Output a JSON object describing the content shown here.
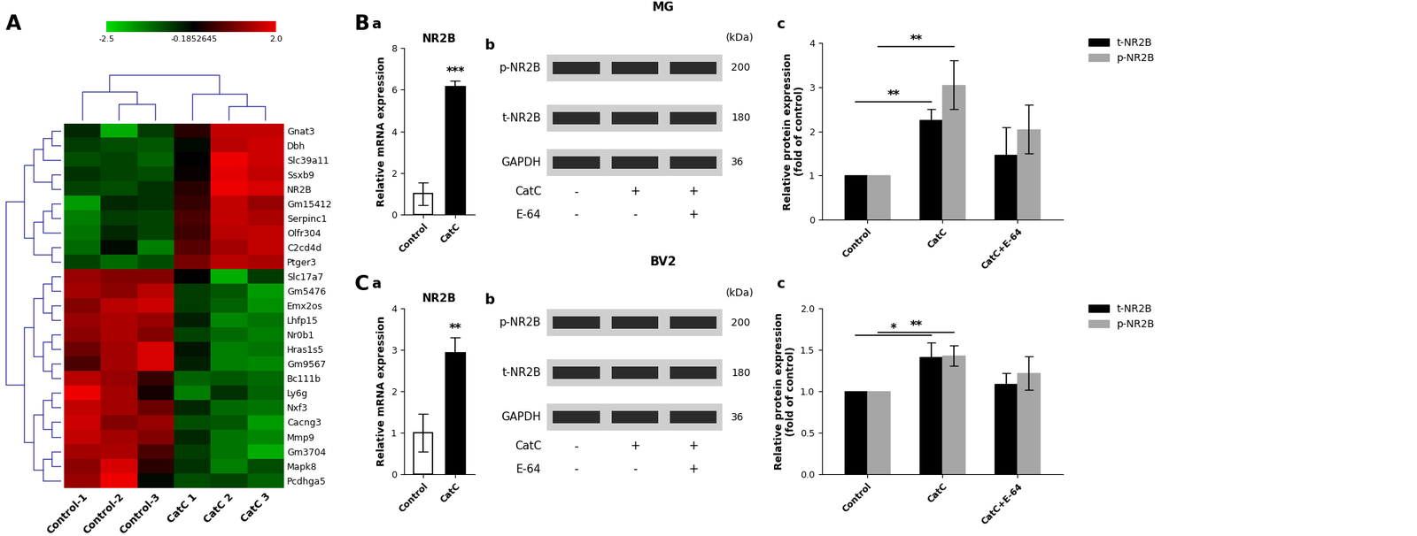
{
  "chart_data": [
    {
      "type": "heatmap",
      "panel_letter": "A",
      "columns": [
        "Control-1",
        "Control-2",
        "Control-3",
        "CatC 1",
        "CatC 2",
        "CatC 3"
      ],
      "rows": [
        "Gnat3",
        "Dbh",
        "Slc39a11",
        "Ssxb9",
        "NR2B",
        "Gm15412",
        "Serpinc1",
        "Olfr304",
        "C2cd4d",
        "Ptger3",
        "Slc17a7",
        "Gm5476",
        "Emx2os",
        "Lhfp15",
        "Nr0b1",
        "Hras1s5",
        "Gm9567",
        "Bc111b",
        "Ly6g",
        "Nxf3",
        "Cacng3",
        "Mmp9",
        "Gm3704",
        "Mapk8",
        "Pcdhga5"
      ],
      "cells": [
        [
          -0.6,
          -2.0,
          -0.8,
          0.2,
          1.6,
          1.6
        ],
        [
          -0.8,
          -1.0,
          -1.1,
          -0.3,
          1.5,
          1.7
        ],
        [
          -1.0,
          -0.9,
          -1.2,
          -0.2,
          2.0,
          1.7
        ],
        [
          -0.7,
          -0.9,
          -1.0,
          -0.1,
          1.9,
          1.6
        ],
        [
          -0.9,
          -1.0,
          -0.7,
          0.2,
          2.0,
          1.8
        ],
        [
          -1.8,
          -0.6,
          -0.7,
          0.3,
          1.6,
          1.2
        ],
        [
          -1.5,
          -0.8,
          -0.9,
          0.5,
          1.6,
          1.4
        ],
        [
          -1.4,
          -0.6,
          -0.9,
          0.4,
          1.5,
          1.6
        ],
        [
          -1.3,
          -0.3,
          -1.5,
          0.6,
          1.3,
          1.6
        ],
        [
          -0.9,
          -1.3,
          -1.0,
          0.9,
          1.5,
          1.4
        ],
        [
          1.2,
          1.0,
          1.0,
          -0.2,
          -2.0,
          -0.8
        ],
        [
          1.3,
          1.1,
          1.5,
          -0.8,
          -1.1,
          -1.8
        ],
        [
          1.0,
          1.5,
          1.7,
          -0.8,
          -1.2,
          -1.7
        ],
        [
          1.2,
          1.4,
          1.2,
          -0.5,
          -1.6,
          -1.4
        ],
        [
          1.1,
          1.4,
          1.0,
          -0.9,
          -1.3,
          -1.5
        ],
        [
          0.8,
          1.3,
          1.8,
          -0.4,
          -1.5,
          -1.4
        ],
        [
          0.5,
          1.3,
          1.8,
          -0.5,
          -1.5,
          -1.6
        ],
        [
          1.5,
          1.2,
          0.3,
          -1.2,
          -1.1,
          -1.3
        ],
        [
          2.0,
          1.3,
          0.0,
          -1.5,
          -0.7,
          -1.2
        ],
        [
          1.6,
          1.3,
          0.8,
          -0.6,
          -1.3,
          -1.4
        ],
        [
          1.7,
          1.0,
          1.2,
          -1.0,
          -1.1,
          -1.8
        ],
        [
          1.6,
          1.3,
          1.0,
          -0.6,
          -1.4,
          -1.6
        ],
        [
          1.3,
          1.4,
          0.5,
          -0.8,
          -1.4,
          -2.0
        ],
        [
          1.1,
          1.8,
          0.2,
          -0.7,
          -1.5,
          -1.0
        ],
        [
          1.2,
          2.0,
          -0.3,
          -1.0,
          -0.9,
          -1.2
        ]
      ],
      "colorbar": {
        "range": [
          -2.5,
          2.0
        ],
        "ticks": [
          -2.5,
          -0.1852645,
          2.0
        ],
        "colors": [
          "#00dd00",
          "#000000",
          "#ee0000"
        ]
      }
    },
    {
      "type": "bar",
      "panel_letter": "B",
      "subpanel": "a",
      "title": "NR2B",
      "y_label": "Relative mRNA expression",
      "categories": [
        "Control",
        "CatC"
      ],
      "values": [
        1.0,
        6.15
      ],
      "errors": [
        0.55,
        0.3
      ],
      "colors": [
        "#ffffff",
        "#000000"
      ],
      "ylim": [
        0,
        8
      ],
      "yticks": [
        0,
        2,
        4,
        6,
        8
      ],
      "annotations": [
        {
          "text": "***",
          "category": 1
        }
      ]
    },
    {
      "type": "grouped_bar",
      "subpanel": "c",
      "y_label": "Relative protein expression\n(fold of control)",
      "categories": [
        "Control",
        "CatC",
        "CatC+E-64"
      ],
      "series": [
        {
          "name": "t-NR2B",
          "color": "#000000",
          "values": [
            1.0,
            2.25,
            1.47
          ],
          "errors": [
            0,
            0.25,
            0.62
          ]
        },
        {
          "name": "p-NR2B",
          "color": "#a6a6a6",
          "values": [
            1.0,
            3.05,
            2.05
          ],
          "errors": [
            0,
            0.55,
            0.55
          ]
        }
      ],
      "ylim": [
        0,
        4
      ],
      "yticks": [
        0,
        1,
        2,
        3,
        4
      ],
      "legend": "upper right",
      "annotations": [
        {
          "text": "**",
          "from": 0,
          "to": 1,
          "series": 0
        },
        {
          "text": "**",
          "from": 0,
          "to": 1,
          "series": 1
        }
      ]
    },
    {
      "type": "bar",
      "panel_letter": "C",
      "subpanel": "a",
      "title": "NR2B",
      "y_label": "Relative mRNA expression",
      "categories": [
        "Control",
        "CatC"
      ],
      "values": [
        1.0,
        2.92
      ],
      "errors": [
        0.45,
        0.38
      ],
      "colors": [
        "#ffffff",
        "#000000"
      ],
      "ylim": [
        0,
        4
      ],
      "yticks": [
        0,
        1,
        2,
        3,
        4
      ],
      "annotations": [
        {
          "text": "**",
          "category": 1
        }
      ]
    },
    {
      "type": "grouped_bar",
      "subpanel": "c",
      "y_label": "Relative protein expression\n(fold of control)",
      "categories": [
        "Control",
        "CatC",
        "CatC+E-64"
      ],
      "series": [
        {
          "name": "t-NR2B",
          "color": "#000000",
          "values": [
            1.0,
            1.41,
            1.09
          ],
          "errors": [
            0,
            0.18,
            0.13
          ]
        },
        {
          "name": "p-NR2B",
          "color": "#a6a6a6",
          "values": [
            1.0,
            1.43,
            1.22
          ],
          "errors": [
            0,
            0.12,
            0.2
          ]
        }
      ],
      "ylim": [
        0.0,
        2.0
      ],
      "yticks": [
        0.0,
        0.5,
        1.0,
        1.5,
        2.0
      ],
      "legend": "upper right",
      "annotations": [
        {
          "text": "*",
          "from": 0,
          "to": 1,
          "series": 0
        },
        {
          "text": "**",
          "from": 0,
          "to": 1,
          "series": 1
        }
      ]
    }
  ],
  "blots": [
    {
      "subpanel": "b",
      "title": "MG",
      "unit": "(kDa)",
      "rows": [
        {
          "label": "p-NR2B",
          "kda": "200"
        },
        {
          "label": "t-NR2B",
          "kda": "180"
        },
        {
          "label": "GAPDH",
          "kda": "36"
        }
      ],
      "treatments": [
        {
          "label": "CatC",
          "lanes": [
            "-",
            "+",
            "+"
          ]
        },
        {
          "label": "E-64",
          "lanes": [
            "-",
            "-",
            "+"
          ]
        }
      ]
    },
    {
      "subpanel": "b",
      "title": "BV2",
      "unit": "(kDa)",
      "rows": [
        {
          "label": "p-NR2B",
          "kda": "200"
        },
        {
          "label": "t-NR2B",
          "kda": "180"
        },
        {
          "label": "GAPDH",
          "kda": "36"
        }
      ],
      "treatments": [
        {
          "label": "CatC",
          "lanes": [
            "-",
            "+",
            "+"
          ]
        },
        {
          "label": "E-64",
          "lanes": [
            "-",
            "-",
            "+"
          ]
        }
      ]
    }
  ]
}
